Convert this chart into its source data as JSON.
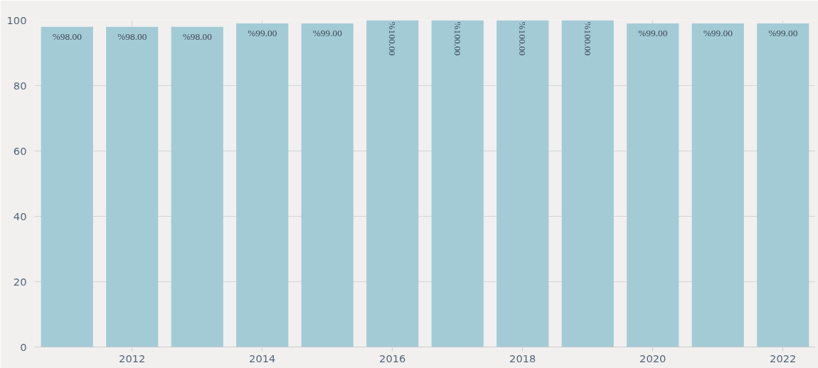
{
  "chart_data": {
    "type": "bar",
    "x": [
      2011,
      2012,
      2013,
      2014,
      2015,
      2016,
      2017,
      2018,
      2019,
      2020,
      2021,
      2022
    ],
    "values": [
      98,
      98,
      98,
      99,
      99,
      100,
      100,
      100,
      100,
      99,
      99,
      99
    ],
    "value_labels": [
      "%98.00",
      "%98.00",
      "%98.00",
      "%99.00",
      "%99.00",
      "%100.00",
      "%100.00",
      "%100.00",
      "%100.00",
      "%99.00",
      "%99.00",
      "%99.00"
    ],
    "color": "#a3cbd6",
    "xlim": [
      2010.5,
      2022.5
    ],
    "xticks": [
      2012,
      2014,
      2016,
      2018,
      2020,
      2022
    ],
    "ylim": [
      0,
      100
    ],
    "yticks": [
      0,
      20,
      40,
      60,
      80,
      100
    ],
    "grid": true
  }
}
